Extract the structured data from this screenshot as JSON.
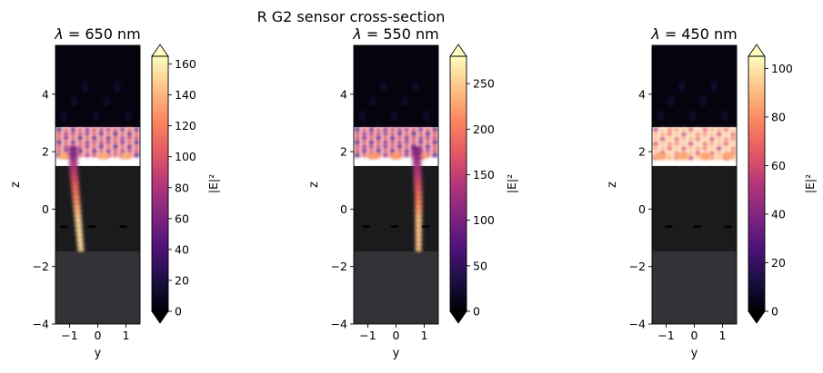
{
  "figure": {
    "title": "R G2 sensor cross-section"
  },
  "chart_data": [
    {
      "type": "heatmap",
      "title_prefix": "λ = ",
      "wavelength": "650",
      "title_unit": " nm",
      "xlabel": "y",
      "ylabel": "z",
      "xlim": [
        -1.5,
        1.5
      ],
      "ylim": [
        -4,
        5.7
      ],
      "xticks": [
        -1,
        0,
        1
      ],
      "yticks": [
        -4,
        -2,
        0,
        2,
        4
      ],
      "colorbar": {
        "label": "|E|²",
        "range": [
          0,
          165
        ],
        "ticks": [
          0,
          20,
          40,
          60,
          80,
          100,
          120,
          140,
          160
        ],
        "extend": "both",
        "colormap": "magma"
      },
      "structure": {
        "substrate_top": -1.5,
        "sensor_top": 1.5,
        "layer_top": 2.85
      },
      "pattern": {
        "column_center": -0.8,
        "column_width": 0.3,
        "hotspots": [
          -1.2,
          0.2,
          1.0
        ],
        "peak": 160
      }
    },
    {
      "type": "heatmap",
      "title_prefix": "λ = ",
      "wavelength": "550",
      "title_unit": " nm",
      "xlabel": "y",
      "ylabel": "z",
      "xlim": [
        -1.5,
        1.5
      ],
      "ylim": [
        -4,
        5.7
      ],
      "xticks": [
        -1,
        0,
        1
      ],
      "yticks": [
        -4,
        -2,
        0,
        2,
        4
      ],
      "colorbar": {
        "label": "|E|²",
        "range": [
          0,
          280
        ],
        "ticks": [
          0,
          50,
          100,
          150,
          200,
          250
        ],
        "extend": "both",
        "colormap": "magma"
      },
      "structure": {
        "substrate_top": -1.5,
        "sensor_top": 1.5,
        "layer_top": 2.85
      },
      "pattern": {
        "column_center": 0.8,
        "column_width": 0.3,
        "hotspots": [
          -0.8,
          0.0,
          0.9
        ],
        "peak": 260
      }
    },
    {
      "type": "heatmap",
      "title_prefix": "λ = ",
      "wavelength": "450",
      "title_unit": " nm",
      "xlabel": "y",
      "ylabel": "z",
      "xlim": [
        -1.5,
        1.5
      ],
      "ylim": [
        -4,
        5.7
      ],
      "xticks": [
        -1,
        0,
        1
      ],
      "yticks": [
        -4,
        -2,
        0,
        2,
        4
      ],
      "colorbar": {
        "label": "|E|²",
        "range": [
          0,
          105
        ],
        "ticks": [
          0,
          20,
          40,
          60,
          80,
          100
        ],
        "extend": "both",
        "colormap": "magma"
      },
      "structure": {
        "substrate_top": -1.5,
        "sensor_top": 1.5,
        "layer_top": 2.85
      },
      "pattern": {
        "column_center": 0,
        "column_width": 0,
        "hotspots": [
          -1.2,
          -0.4,
          0.4,
          1.2
        ],
        "peak": 100
      }
    }
  ]
}
